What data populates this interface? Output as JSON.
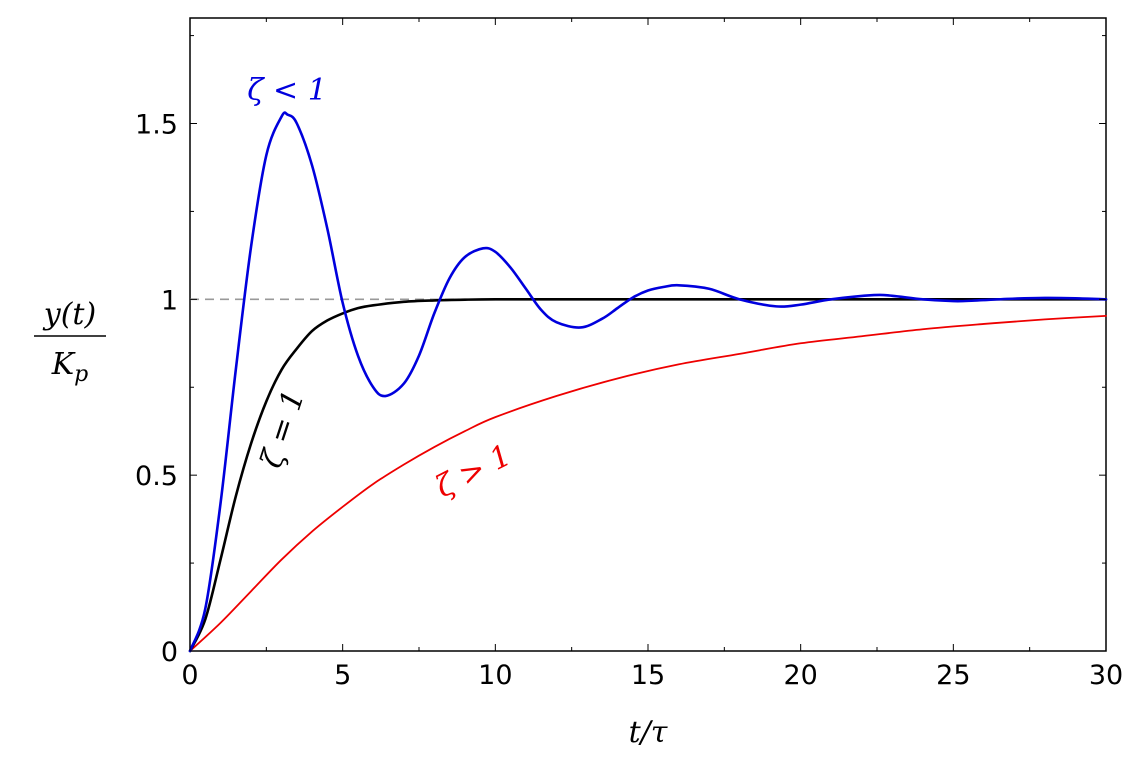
{
  "chart_data": {
    "type": "line",
    "xlabel": "t/τ",
    "ylabel_numerator": "y(t)",
    "ylabel_denominator": "K_p",
    "xlim": [
      0,
      30
    ],
    "ylim": [
      0,
      1.8
    ],
    "x_ticks": [
      0,
      5,
      10,
      15,
      20,
      25,
      30
    ],
    "y_ticks": [
      0,
      0.5,
      1,
      1.5
    ],
    "x_tick_labels": [
      "0",
      "5",
      "10",
      "15",
      "20",
      "25",
      "30"
    ],
    "y_tick_labels": [
      "0",
      "0.5",
      "1",
      "1.5"
    ],
    "grid": false,
    "reference_line": {
      "y": 1,
      "style": "dashed",
      "color": "#999999"
    },
    "colors": {
      "underdamped": "#0000dd",
      "critical": "#000000",
      "overdamped": "#ee0000"
    },
    "series": [
      {
        "key": "underdamped",
        "annotation": "ζ < 1",
        "x": [
          0,
          0.5,
          1,
          1.5,
          2,
          2.5,
          3,
          3.2,
          3.5,
          4,
          4.5,
          5,
          5.5,
          6,
          6.4,
          7,
          7.5,
          8,
          8.5,
          9,
          9.6,
          10,
          10.5,
          11,
          11.5,
          12,
          12.8,
          13.5,
          14,
          14.5,
          15,
          15.5,
          16,
          17,
          18,
          19.2,
          20,
          21,
          22.4,
          23,
          24,
          25,
          25.6,
          26,
          27,
          28,
          29,
          30
        ],
        "y": [
          0,
          0.12,
          0.42,
          0.8,
          1.15,
          1.41,
          1.52,
          1.525,
          1.5,
          1.38,
          1.2,
          0.99,
          0.84,
          0.75,
          0.725,
          0.76,
          0.84,
          0.96,
          1.06,
          1.12,
          1.145,
          1.135,
          1.09,
          1.03,
          0.97,
          0.935,
          0.92,
          0.945,
          0.975,
          1.005,
          1.025,
          1.035,
          1.04,
          1.03,
          1.0,
          0.98,
          0.985,
          1.0,
          1.012,
          1.01,
          1.0,
          0.995,
          0.996,
          0.998,
          1.002,
          1.004,
          1.003,
          1.0
        ]
      },
      {
        "key": "critical",
        "annotation": "ζ = 1",
        "x": [
          0,
          0.5,
          1,
          1.5,
          2,
          2.5,
          3,
          3.5,
          4,
          4.5,
          5,
          5.5,
          6,
          7,
          8,
          9,
          10,
          12,
          15,
          20,
          25,
          30
        ],
        "y": [
          0,
          0.09,
          0.26,
          0.44,
          0.59,
          0.71,
          0.8,
          0.86,
          0.91,
          0.94,
          0.96,
          0.975,
          0.983,
          0.993,
          0.997,
          0.999,
          1.0,
          1.0,
          1.0,
          1.0,
          1.0,
          1.0
        ]
      },
      {
        "key": "overdamped",
        "annotation": "ζ > 1",
        "x": [
          0,
          1,
          2,
          3,
          4,
          5,
          6,
          7,
          8,
          9,
          10,
          12,
          14,
          16,
          18,
          20,
          22,
          24,
          26,
          28,
          30
        ],
        "y": [
          0,
          0.08,
          0.17,
          0.26,
          0.34,
          0.41,
          0.475,
          0.53,
          0.58,
          0.625,
          0.665,
          0.725,
          0.775,
          0.815,
          0.845,
          0.875,
          0.895,
          0.915,
          0.93,
          0.943,
          0.953
        ]
      }
    ]
  }
}
